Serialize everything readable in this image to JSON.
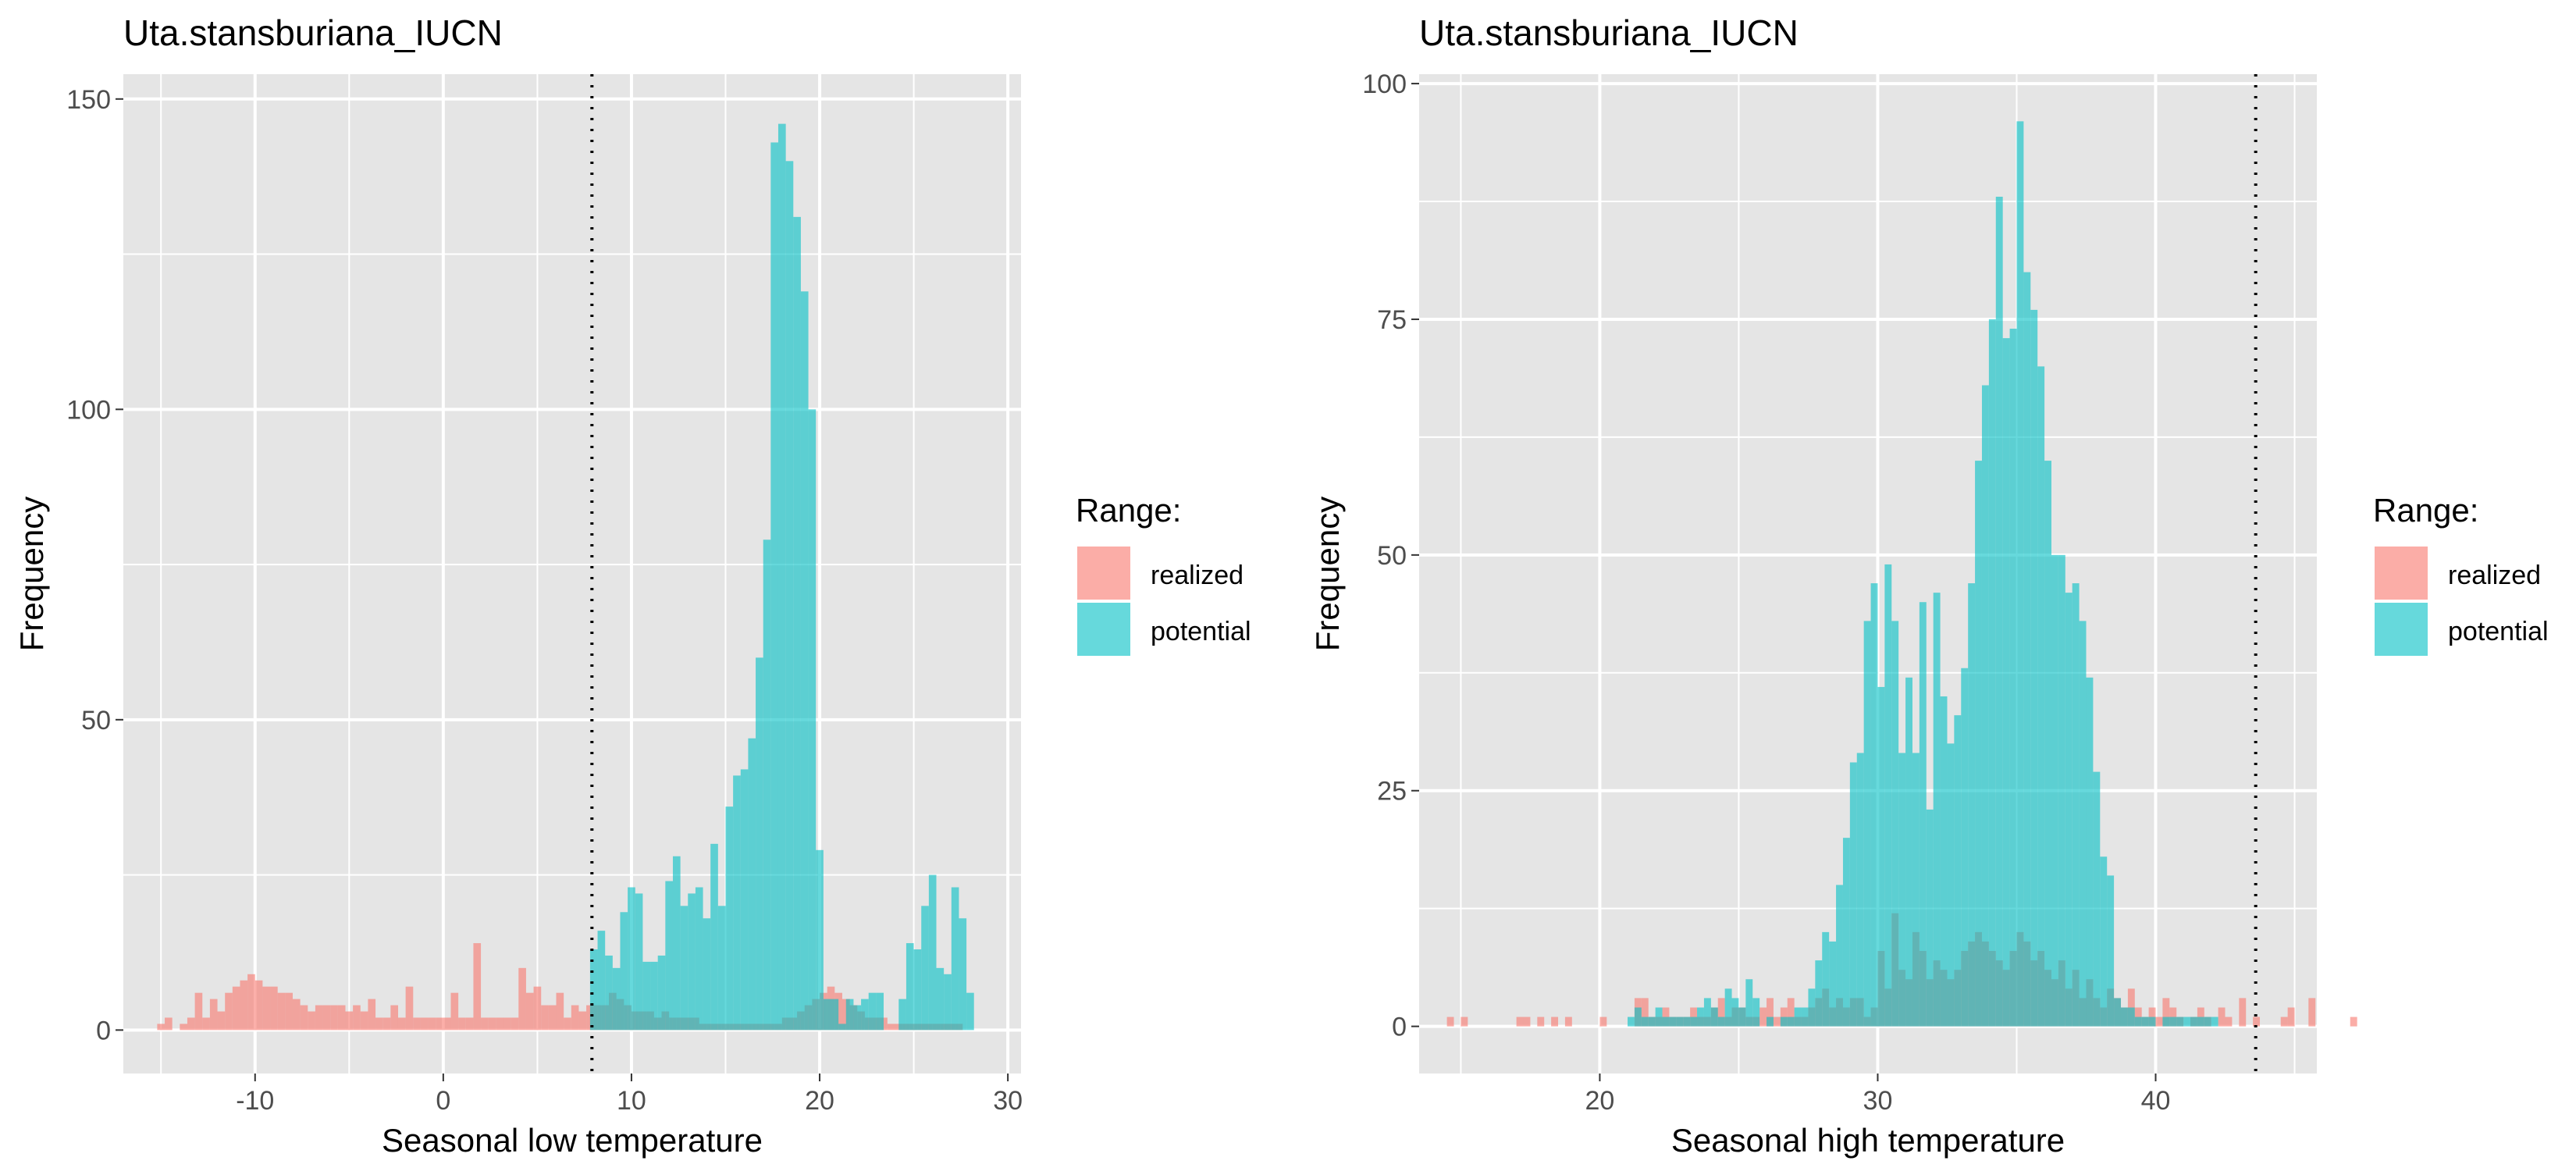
{
  "colors": {
    "realized": "#F8766D",
    "potential": "#00BFC4",
    "panel_bg": "#E5E5E5",
    "grid": "#FFFFFF",
    "text": "#1A1A1A",
    "tick_text": "#4D4D4D"
  },
  "chart_data": [
    {
      "type": "histogram",
      "title": "Uta.stansburiana_IUCN",
      "xlabel": "Seasonal low temperature",
      "ylabel": "Frequency",
      "xlim": [
        -17,
        30.7
      ],
      "ylim": [
        -7,
        154
      ],
      "xticks": [
        -10,
        0,
        10,
        20,
        30
      ],
      "xtick_labels": [
        "-10",
        "0",
        "10",
        "20",
        "30"
      ],
      "yticks": [
        0,
        50,
        100,
        150
      ],
      "ytick_labels": [
        "0",
        "50",
        "100",
        "150"
      ],
      "grid": true,
      "threshold": 7.9,
      "legend": {
        "title": "Range:",
        "labels": [
          "realized",
          "potential"
        ],
        "position": "right"
      },
      "bin_width": 0.4,
      "series": [
        {
          "name": "realized",
          "x_start": -15.2,
          "counts": [
            1,
            2,
            0,
            1,
            2,
            6,
            2,
            5,
            3,
            6,
            7,
            8,
            9,
            8,
            7,
            7,
            6,
            6,
            5,
            4,
            3,
            4,
            4,
            4,
            4,
            3,
            4,
            3,
            5,
            2,
            2,
            4,
            2,
            7,
            2,
            2,
            2,
            2,
            2,
            6,
            2,
            2,
            14,
            2,
            2,
            2,
            2,
            2,
            10,
            6,
            7,
            4,
            4,
            6,
            2,
            4,
            3,
            4,
            4,
            4,
            6,
            5,
            4,
            3,
            3,
            3,
            2,
            3,
            2,
            2,
            2,
            2,
            1,
            1,
            1,
            1,
            1,
            1,
            1,
            1,
            1,
            1,
            1,
            2,
            2,
            3,
            4,
            5,
            6,
            7,
            6,
            5,
            4,
            3,
            2,
            2,
            2,
            1,
            1,
            1,
            1,
            1,
            1,
            1,
            1,
            1,
            1
          ]
        },
        {
          "name": "potential",
          "x_start": 7.8,
          "counts": [
            13,
            16,
            12,
            10,
            19,
            23,
            22,
            11,
            11,
            12,
            24,
            28,
            20,
            22,
            23,
            18,
            30,
            20,
            36,
            41,
            42,
            47,
            60,
            79,
            143,
            146,
            140,
            131,
            119,
            100,
            29,
            5,
            5,
            1,
            5,
            4,
            5,
            6,
            6,
            0,
            0,
            5,
            14,
            13,
            20,
            25,
            10,
            9,
            23,
            18,
            6
          ]
        }
      ]
    },
    {
      "type": "histogram",
      "title": "Uta.stansburiana_IUCN",
      "xlabel": "Seasonal high temperature",
      "ylabel": "Frequency",
      "xlim": [
        13.5,
        45.8
      ],
      "ylim": [
        -5,
        101
      ],
      "xticks": [
        20,
        30,
        40
      ],
      "xtick_labels": [
        "20",
        "30",
        "40"
      ],
      "yticks": [
        0,
        25,
        50,
        75,
        100
      ],
      "ytick_labels": [
        "0",
        "25",
        "50",
        "75",
        "100"
      ],
      "grid": true,
      "threshold": 43.6,
      "legend": {
        "title": "Range:",
        "labels": [
          "realized",
          "potential"
        ],
        "position": "right"
      },
      "bin_width": 0.25,
      "series": [
        {
          "name": "realized",
          "x_start": 14.5,
          "counts": [
            1,
            0,
            1,
            0,
            0,
            0,
            0,
            0,
            0,
            0,
            1,
            1,
            0,
            1,
            0,
            1,
            0,
            1,
            0,
            0,
            0,
            0,
            1,
            0,
            0,
            0,
            0,
            3,
            3,
            1,
            1,
            2,
            1,
            1,
            1,
            2,
            1,
            1,
            2,
            3,
            1,
            2,
            2,
            1,
            1,
            2,
            3,
            1,
            2,
            3,
            1,
            1,
            2,
            3,
            4,
            2,
            3,
            2,
            3,
            3,
            1,
            2,
            8,
            4,
            12,
            6,
            5,
            10,
            8,
            5,
            7,
            6,
            5,
            6,
            8,
            9,
            10,
            9,
            8,
            7,
            6,
            8,
            10,
            9,
            7,
            8,
            6,
            5,
            7,
            4,
            6,
            3,
            5,
            3,
            2,
            4,
            3,
            2,
            4,
            2,
            1,
            2,
            1,
            3,
            2,
            1,
            0,
            1,
            2,
            1,
            0,
            2,
            1,
            0,
            3,
            0,
            1,
            0,
            0,
            0,
            1,
            2,
            0,
            0,
            3,
            0,
            0,
            0,
            0,
            0,
            1,
            0,
            0,
            0,
            0,
            0,
            0,
            0
          ]
        },
        {
          "name": "potential",
          "x_start": 20.5,
          "counts": [
            0,
            0,
            1,
            2,
            1,
            1,
            2,
            1,
            1,
            1,
            1,
            1,
            2,
            3,
            2,
            1,
            4,
            3,
            2,
            5,
            3,
            0,
            1,
            0,
            1,
            1,
            2,
            2,
            4,
            7,
            10,
            9,
            15,
            20,
            28,
            29,
            43,
            47,
            36,
            49,
            43,
            29,
            37,
            29,
            45,
            23,
            46,
            35,
            30,
            33,
            38,
            47,
            60,
            68,
            75,
            88,
            73,
            74,
            96,
            80,
            76,
            70,
            60,
            50,
            50,
            46,
            47,
            43,
            37,
            27,
            18,
            16,
            3,
            2,
            2,
            1,
            1,
            1,
            0,
            1,
            1,
            1,
            1,
            1,
            1,
            1,
            1
          ]
        }
      ]
    }
  ]
}
